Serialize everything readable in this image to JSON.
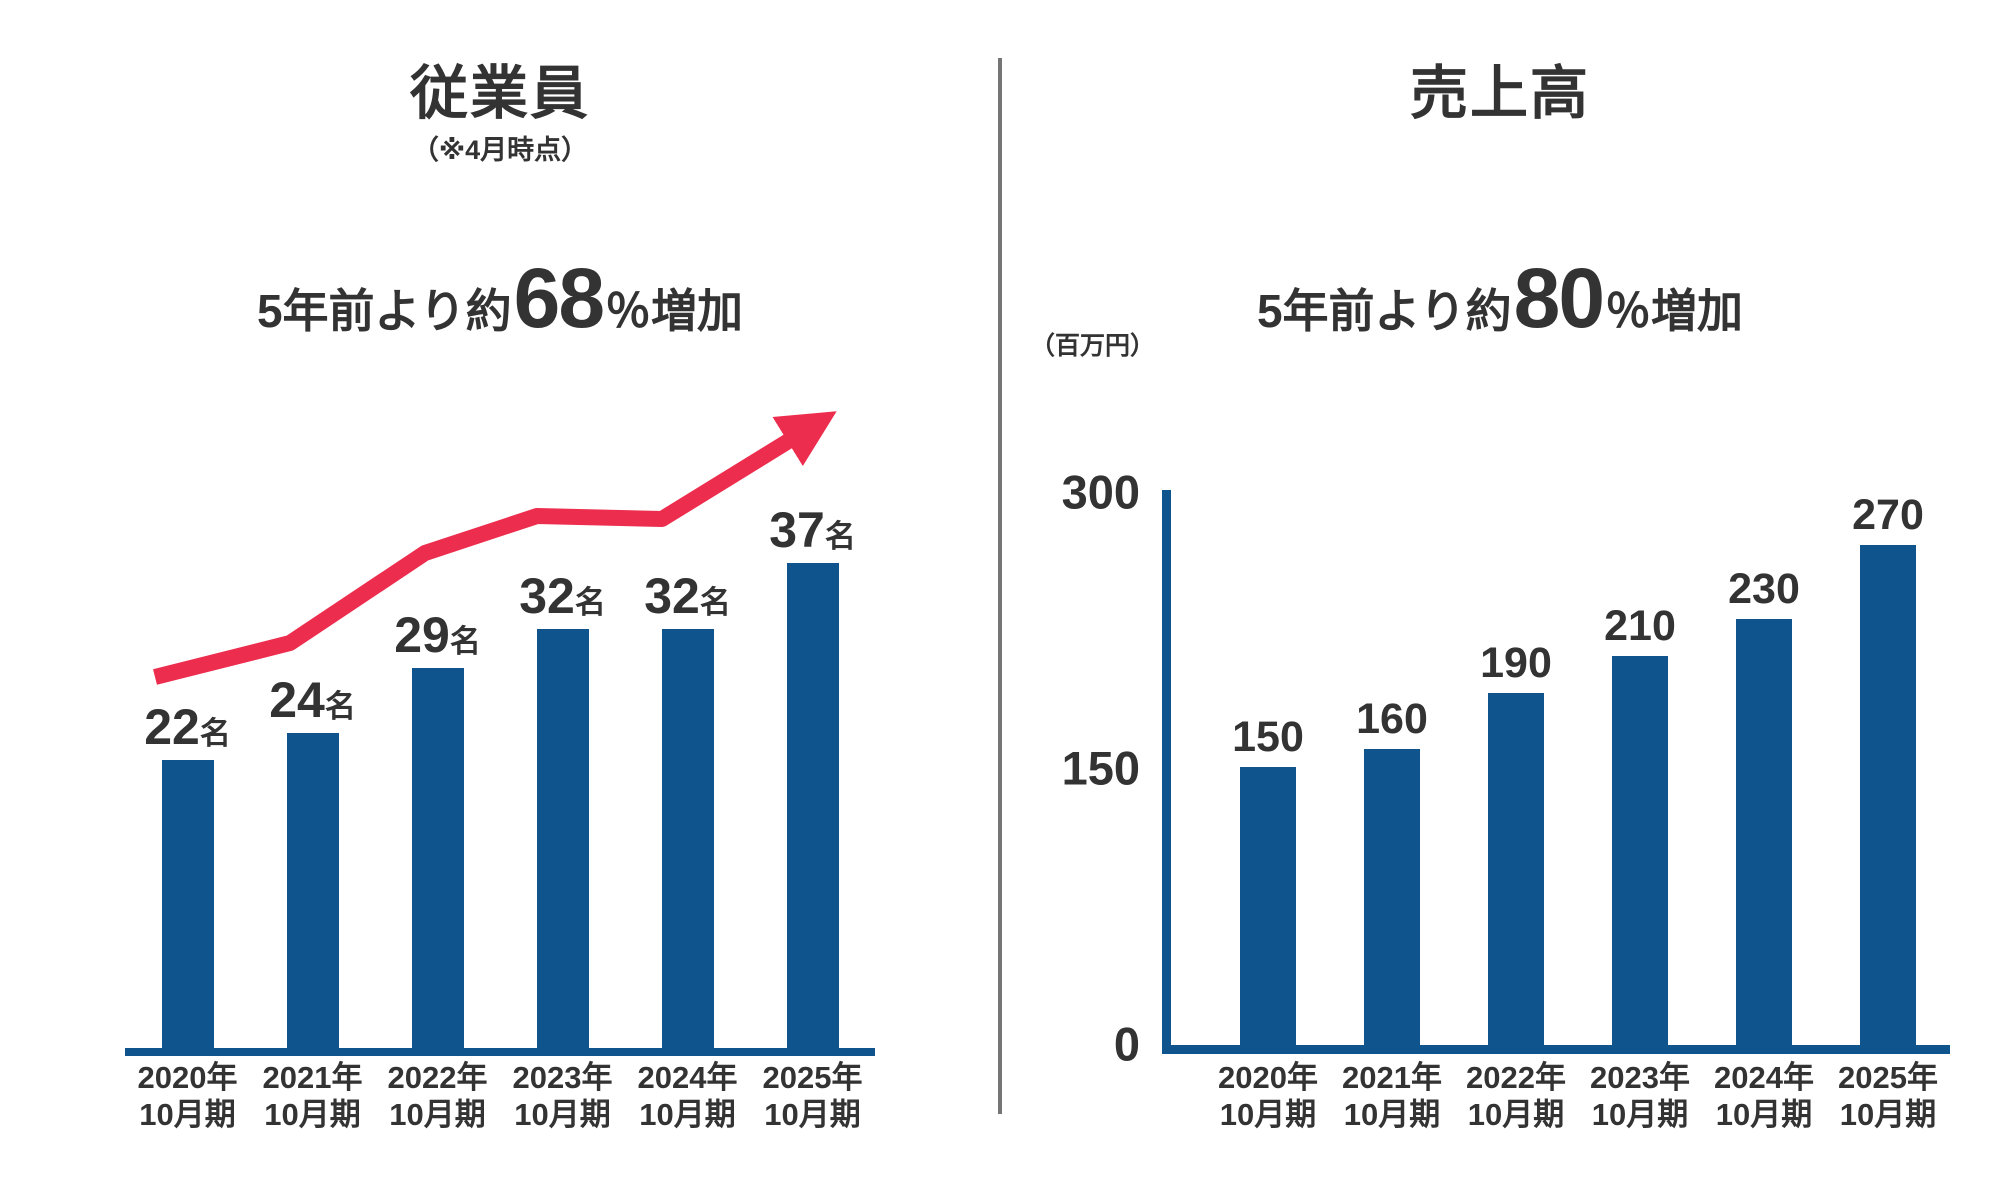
{
  "colors": {
    "bar": "#10548e",
    "axis": "#10548e",
    "arrow": "#ed2d4d",
    "text": "#333333",
    "divider": "#757575"
  },
  "chart_data": [
    {
      "type": "bar",
      "title": "従業員",
      "subtitle": "（※4月時点）",
      "annotation": {
        "prefix": "5年前より約",
        "highlight": "68",
        "suffix": "％増加"
      },
      "unit_suffix": "名",
      "categories": [
        {
          "year": "2020年",
          "period": "10月期"
        },
        {
          "year": "2021年",
          "period": "10月期"
        },
        {
          "year": "2022年",
          "period": "10月期"
        },
        {
          "year": "2023年",
          "period": "10月期"
        },
        {
          "year": "2024年",
          "period": "10月期"
        },
        {
          "year": "2025年",
          "period": "10月期"
        }
      ],
      "values": [
        22,
        24,
        29,
        32,
        32,
        37
      ],
      "ylim": [
        0,
        37
      ],
      "grid": false,
      "legend": "none",
      "axis_style": "baseline-only",
      "trend_arrow": true
    },
    {
      "type": "bar",
      "title": "売上高",
      "annotation": {
        "prefix": "5年前より約",
        "highlight": "80",
        "suffix": "％増加"
      },
      "y_unit_label": "（百万円）",
      "yticks": [
        300,
        150,
        0
      ],
      "ylim": [
        0,
        300
      ],
      "categories": [
        {
          "year": "2020年",
          "period": "10月期"
        },
        {
          "year": "2021年",
          "period": "10月期"
        },
        {
          "year": "2022年",
          "period": "10月期"
        },
        {
          "year": "2023年",
          "period": "10月期"
        },
        {
          "year": "2024年",
          "period": "10月期"
        },
        {
          "year": "2025年",
          "period": "10月期"
        }
      ],
      "values": [
        150,
        160,
        190,
        210,
        230,
        270
      ],
      "grid": false,
      "legend": "none",
      "axis_style": "L-axis",
      "trend_arrow": false
    }
  ]
}
